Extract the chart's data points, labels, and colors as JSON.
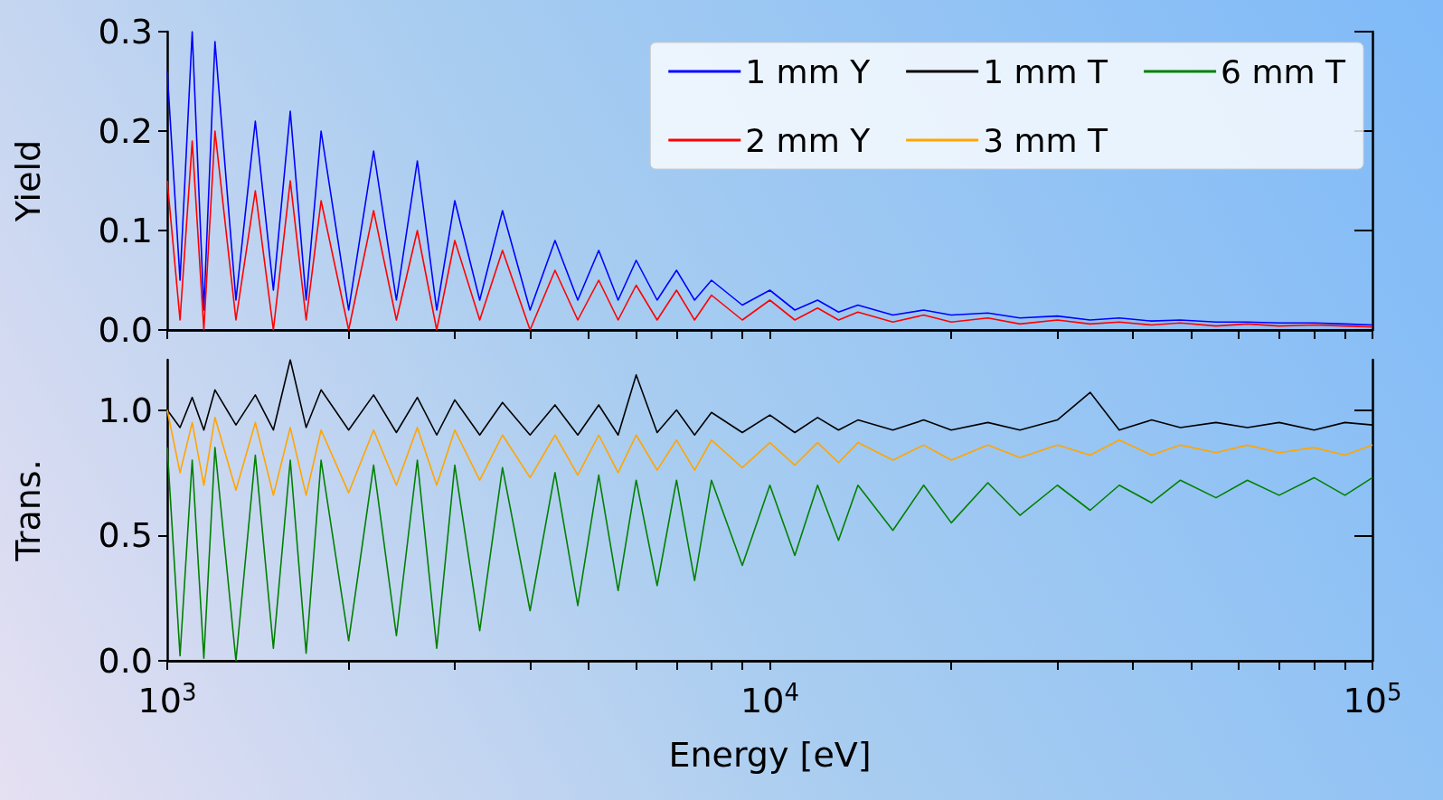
{
  "chart_data": [
    {
      "type": "line",
      "ylabel": "Yield",
      "legend": "top right",
      "log": "x",
      "xlim": [
        1000,
        100000
      ],
      "ylim": [
        0,
        0.3
      ],
      "yticks": [
        {
          "value": 0,
          "label": "0.0"
        },
        {
          "value": 0.1,
          "label": "0.1"
        },
        {
          "value": 0.2,
          "label": "0.2"
        },
        {
          "value": 0.3,
          "label": "0.3"
        }
      ],
      "tick_labels": "y",
      "xticks": [
        {
          "value": 1000,
          "label": null
        },
        {
          "value": 2000,
          "label": null
        },
        {
          "value": 3000,
          "label": null
        },
        {
          "value": 4000,
          "label": null
        },
        {
          "value": 5000,
          "label": null
        },
        {
          "value": 6000,
          "label": null
        },
        {
          "value": 7000,
          "label": null
        },
        {
          "value": 8000,
          "label": null
        },
        {
          "value": 9000,
          "label": null
        },
        {
          "value": 10000,
          "label": null
        },
        {
          "value": 20000,
          "label": null
        },
        {
          "value": 30000,
          "label": null
        },
        {
          "value": 40000,
          "label": null
        },
        {
          "value": 50000,
          "label": null
        },
        {
          "value": 60000,
          "label": null
        },
        {
          "value": 70000,
          "label": null
        },
        {
          "value": 80000,
          "label": null
        },
        {
          "value": 90000,
          "label": null
        },
        {
          "value": 100000,
          "label": null
        }
      ],
      "x": [
        1000,
        1050,
        1100,
        1150,
        1200,
        1300,
        1400,
        1500,
        1600,
        1700,
        1800,
        2000,
        2200,
        2400,
        2600,
        2800,
        3000,
        3300,
        3600,
        4000,
        4400,
        4800,
        5200,
        5600,
        6000,
        6500,
        7000,
        7500,
        8000,
        9000,
        10000,
        11000,
        12000,
        13000,
        14000,
        16000,
        18000,
        20000,
        23000,
        26000,
        30000,
        34000,
        38000,
        43000,
        48000,
        55000,
        62000,
        70000,
        80000,
        90000,
        100000
      ],
      "series": [
        {
          "name": "1 mm Y",
          "color": "#0000ff",
          "values": [
            0.26,
            0.05,
            0.3,
            0.02,
            0.29,
            0.03,
            0.21,
            0.04,
            0.22,
            0.03,
            0.2,
            0.02,
            0.18,
            0.03,
            0.17,
            0.02,
            0.13,
            0.03,
            0.12,
            0.02,
            0.09,
            0.03,
            0.08,
            0.03,
            0.07,
            0.03,
            0.06,
            0.03,
            0.05,
            0.025,
            0.04,
            0.02,
            0.03,
            0.018,
            0.025,
            0.015,
            0.02,
            0.015,
            0.017,
            0.012,
            0.014,
            0.01,
            0.012,
            0.009,
            0.01,
            0.008,
            0.008,
            0.007,
            0.007,
            0.006,
            0.005
          ]
        },
        {
          "name": "2 mm Y",
          "color": "#ff0000",
          "values": [
            0.15,
            0.01,
            0.19,
            0.0,
            0.2,
            0.01,
            0.14,
            0.0,
            0.15,
            0.01,
            0.13,
            0.0,
            0.12,
            0.01,
            0.1,
            0.0,
            0.09,
            0.01,
            0.08,
            0.0,
            0.06,
            0.01,
            0.05,
            0.01,
            0.045,
            0.01,
            0.04,
            0.01,
            0.035,
            0.01,
            0.03,
            0.01,
            0.022,
            0.01,
            0.018,
            0.008,
            0.015,
            0.008,
            0.012,
            0.006,
            0.01,
            0.006,
            0.008,
            0.005,
            0.007,
            0.004,
            0.006,
            0.004,
            0.005,
            0.004,
            0.003
          ]
        }
      ]
    },
    {
      "type": "line",
      "ylabel": "Trans.",
      "xlabel": "Energy [eV]",
      "legend": "top right",
      "log": "x",
      "xlim": [
        1000,
        100000
      ],
      "ylim": [
        0,
        1.2
      ],
      "yticks": [
        {
          "value": 0,
          "label": "0.0"
        },
        {
          "value": 0.5,
          "label": "0.5"
        },
        {
          "value": 1.0,
          "label": "1.0"
        }
      ],
      "xticks": [
        {
          "value": 1000,
          "label": "10$^{3}$"
        },
        {
          "value": 2000,
          "label": null
        },
        {
          "value": 3000,
          "label": null
        },
        {
          "value": 4000,
          "label": null
        },
        {
          "value": 5000,
          "label": null
        },
        {
          "value": 6000,
          "label": null
        },
        {
          "value": 7000,
          "label": null
        },
        {
          "value": 8000,
          "label": null
        },
        {
          "value": 9000,
          "label": null
        },
        {
          "value": 10000,
          "label": "10$^{4}$"
        },
        {
          "value": 20000,
          "label": null
        },
        {
          "value": 30000,
          "label": null
        },
        {
          "value": 40000,
          "label": null
        },
        {
          "value": 50000,
          "label": null
        },
        {
          "value": 60000,
          "label": null
        },
        {
          "value": 70000,
          "label": null
        },
        {
          "value": 80000,
          "label": null
        },
        {
          "value": 90000,
          "label": null
        },
        {
          "value": 100000,
          "label": "10$^{5}$"
        }
      ],
      "x": [
        1000,
        1050,
        1100,
        1150,
        1200,
        1300,
        1400,
        1500,
        1600,
        1700,
        1800,
        2000,
        2200,
        2400,
        2600,
        2800,
        3000,
        3300,
        3600,
        4000,
        4400,
        4800,
        5200,
        5600,
        6000,
        6500,
        7000,
        7500,
        8000,
        9000,
        10000,
        11000,
        12000,
        13000,
        14000,
        16000,
        18000,
        20000,
        23000,
        26000,
        30000,
        34000,
        38000,
        43000,
        48000,
        55000,
        62000,
        70000,
        80000,
        90000,
        100000
      ],
      "series": [
        {
          "name": "1 mm T",
          "color": "#000000",
          "values": [
            1.0,
            0.93,
            1.05,
            0.92,
            1.08,
            0.94,
            1.06,
            0.92,
            1.2,
            0.93,
            1.08,
            0.92,
            1.06,
            0.91,
            1.05,
            0.9,
            1.04,
            0.9,
            1.03,
            0.9,
            1.02,
            0.9,
            1.02,
            0.9,
            1.14,
            0.91,
            1.0,
            0.9,
            0.99,
            0.91,
            0.98,
            0.91,
            0.97,
            0.92,
            0.96,
            0.92,
            0.96,
            0.92,
            0.95,
            0.92,
            0.96,
            1.07,
            0.92,
            0.96,
            0.93,
            0.95,
            0.93,
            0.95,
            0.92,
            0.95,
            0.94
          ]
        },
        {
          "name": "3 mm T",
          "color": "#ffa500",
          "values": [
            1.0,
            0.75,
            0.95,
            0.7,
            0.97,
            0.68,
            0.95,
            0.66,
            0.93,
            0.66,
            0.92,
            0.67,
            0.92,
            0.7,
            0.93,
            0.7,
            0.92,
            0.72,
            0.9,
            0.73,
            0.9,
            0.74,
            0.9,
            0.75,
            0.9,
            0.76,
            0.88,
            0.76,
            0.88,
            0.77,
            0.87,
            0.78,
            0.87,
            0.79,
            0.87,
            0.8,
            0.86,
            0.8,
            0.86,
            0.81,
            0.86,
            0.82,
            0.88,
            0.82,
            0.86,
            0.83,
            0.86,
            0.83,
            0.85,
            0.82,
            0.86
          ]
        },
        {
          "name": "6 mm T",
          "color": "#008000",
          "values": [
            0.85,
            0.02,
            0.8,
            0.01,
            0.85,
            0.0,
            0.82,
            0.05,
            0.8,
            0.03,
            0.8,
            0.08,
            0.78,
            0.1,
            0.8,
            0.05,
            0.78,
            0.12,
            0.77,
            0.2,
            0.75,
            0.22,
            0.74,
            0.28,
            0.72,
            0.3,
            0.72,
            0.32,
            0.72,
            0.38,
            0.7,
            0.42,
            0.7,
            0.48,
            0.7,
            0.52,
            0.7,
            0.55,
            0.71,
            0.58,
            0.7,
            0.6,
            0.7,
            0.63,
            0.72,
            0.65,
            0.72,
            0.66,
            0.73,
            0.66,
            0.73
          ]
        }
      ]
    }
  ]
}
